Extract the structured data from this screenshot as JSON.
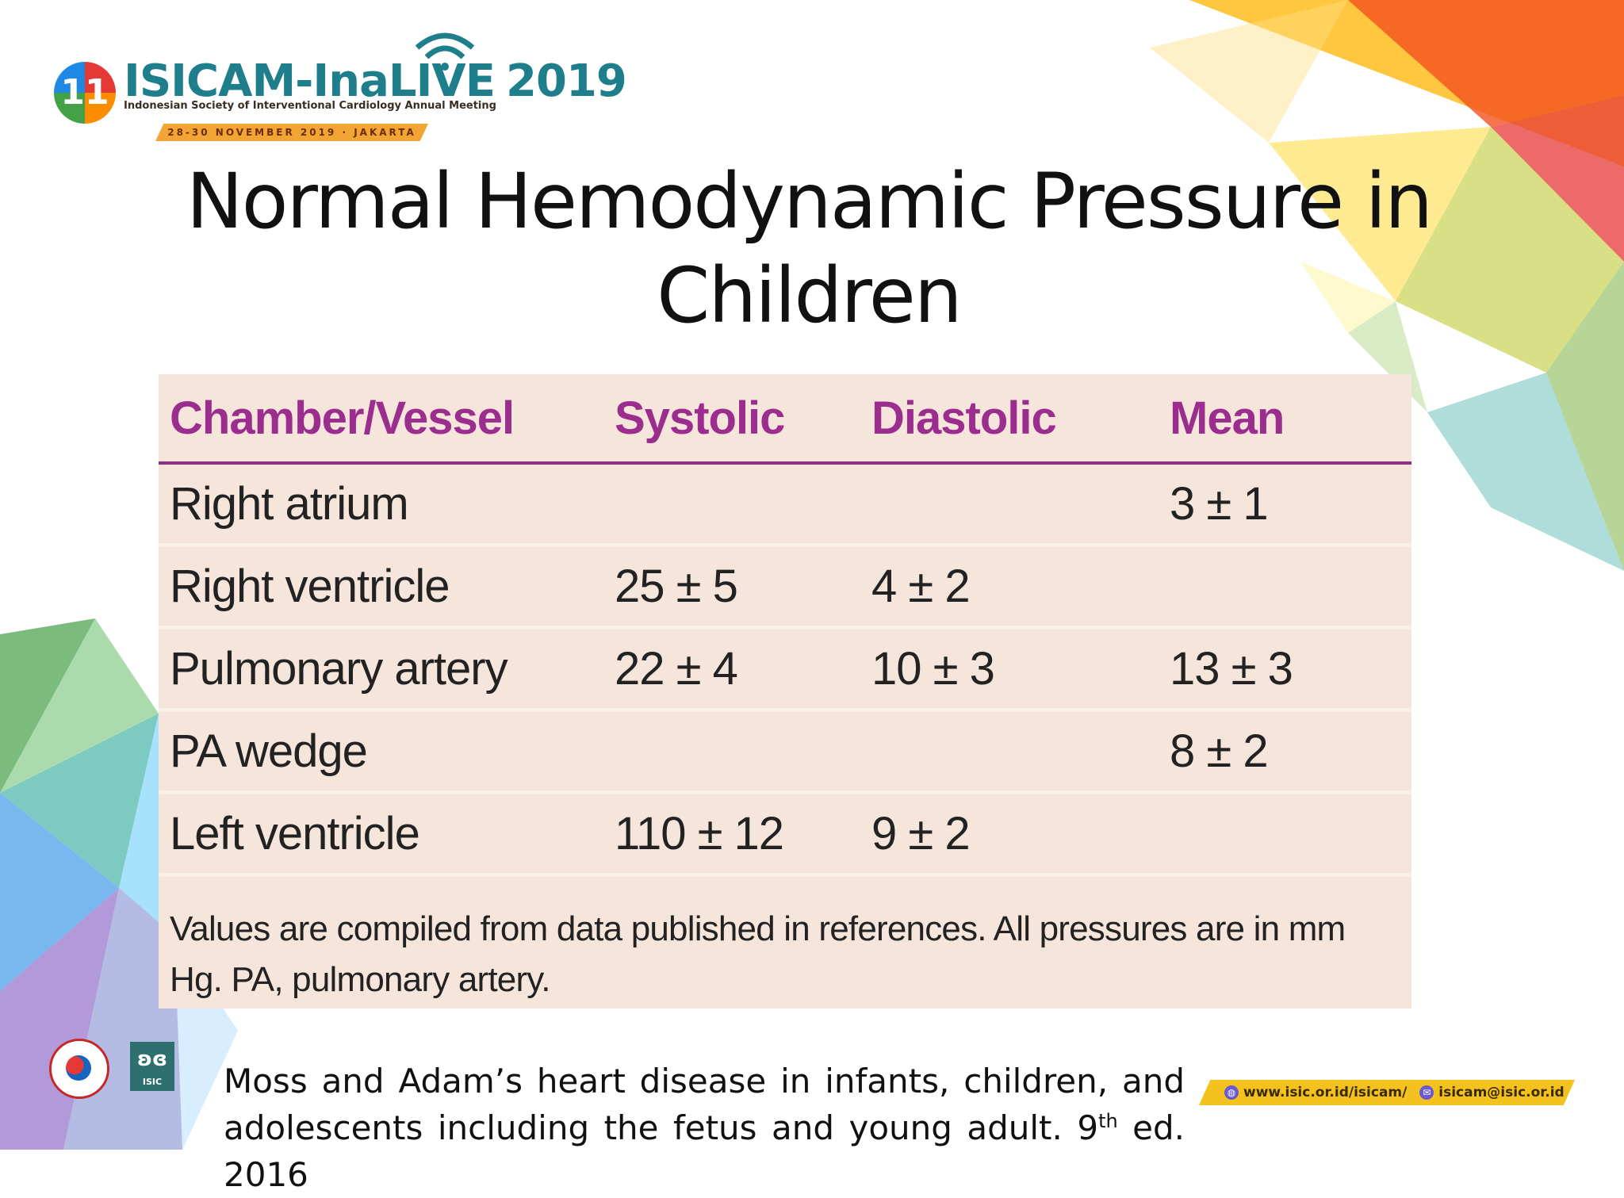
{
  "header": {
    "logo_badge": "11",
    "logo_name_part1": "ISICAM-Ina",
    "logo_name_part2": "LIVE",
    "logo_year": "2019",
    "logo_subtitle": "Indonesian Society of Interventional Cardiology Annual Meeting",
    "logo_dates": "28-30 NOVEMBER 2019 · JAKARTA"
  },
  "slide": {
    "title_line1": "Normal Hemodynamic Pressure in",
    "title_line2": "Children"
  },
  "table": {
    "headers": [
      "Chamber/Vessel",
      "Systolic",
      "Diastolic",
      "Mean"
    ],
    "rows": [
      [
        "Right atrium",
        "",
        "",
        "3 ± 1"
      ],
      [
        "Right ventricle",
        "25 ± 5",
        "4 ± 2",
        ""
      ],
      [
        "Pulmonary artery",
        "22 ± 4",
        "10 ± 3",
        "13 ± 3"
      ],
      [
        "PA wedge",
        "",
        "",
        "8 ± 2"
      ],
      [
        "Left ventricle",
        "110 ± 12",
        "9 ± 2",
        ""
      ]
    ],
    "note": "Values are compiled from data published in references. All pressures are in mm Hg. PA, pulmonary artery."
  },
  "footer": {
    "citation_main": "Moss and Adam’s heart disease in infants, children, and adolescents including the fetus and young adult. 9",
    "citation_sup": "th",
    "citation_end": " ed. 2016",
    "logo2_text": "ISIC",
    "website": "www.isic.or.id/isicam/",
    "email": "isicam@isic.or.id"
  },
  "colors": {
    "header_accent": "#9a2d8e",
    "table_bg": "#f6e5da",
    "logo_teal": "#1f7e8c",
    "date_band": "#f2a535",
    "contact_band": "#f4c21f"
  }
}
